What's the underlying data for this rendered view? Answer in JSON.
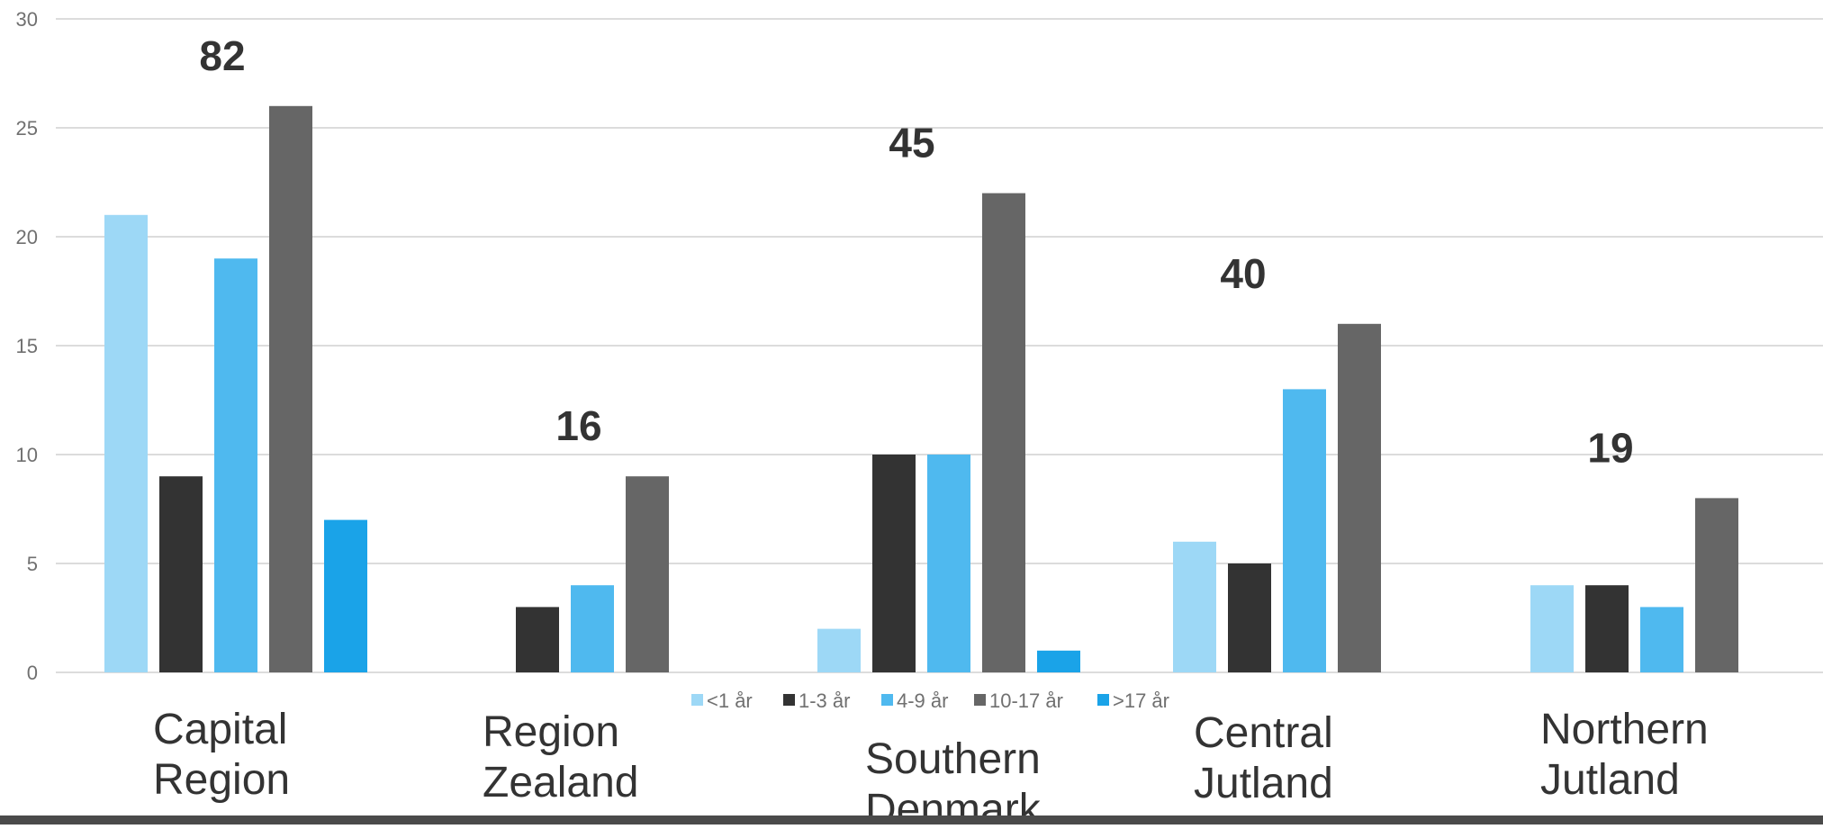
{
  "chart_data": {
    "type": "bar",
    "categories": [
      [
        "Capital",
        "Region"
      ],
      [
        "Region",
        "Zealand"
      ],
      [
        "Southern",
        "Denmark"
      ],
      [
        "Central",
        "Jutland"
      ],
      [
        "Northern",
        "Jutland"
      ]
    ],
    "series": [
      {
        "name": "<1 år",
        "color": "#9dd8f6",
        "values": [
          21,
          0,
          2,
          6,
          4
        ]
      },
      {
        "name": "1-3 år",
        "color": "#333333",
        "values": [
          9,
          3,
          10,
          5,
          4
        ]
      },
      {
        "name": "4-9 år",
        "color": "#4fb9ef",
        "values": [
          19,
          4,
          10,
          13,
          3
        ]
      },
      {
        "name": "10-17 år",
        "color": "#666666",
        "values": [
          26,
          9,
          22,
          16,
          8
        ]
      },
      {
        "name": ">17 år",
        "color": "#1aa3e8",
        "values": [
          7,
          0,
          1,
          0,
          0
        ]
      }
    ],
    "totals": [
      "82",
      "16",
      "45",
      "40",
      "19"
    ],
    "ylim": [
      0,
      30
    ],
    "yticks": [
      "0",
      "5",
      "10",
      "15",
      "20",
      "25",
      "30"
    ],
    "grid": true,
    "legend": "bottom-center",
    "title": "",
    "xlabel": "",
    "ylabel": ""
  }
}
